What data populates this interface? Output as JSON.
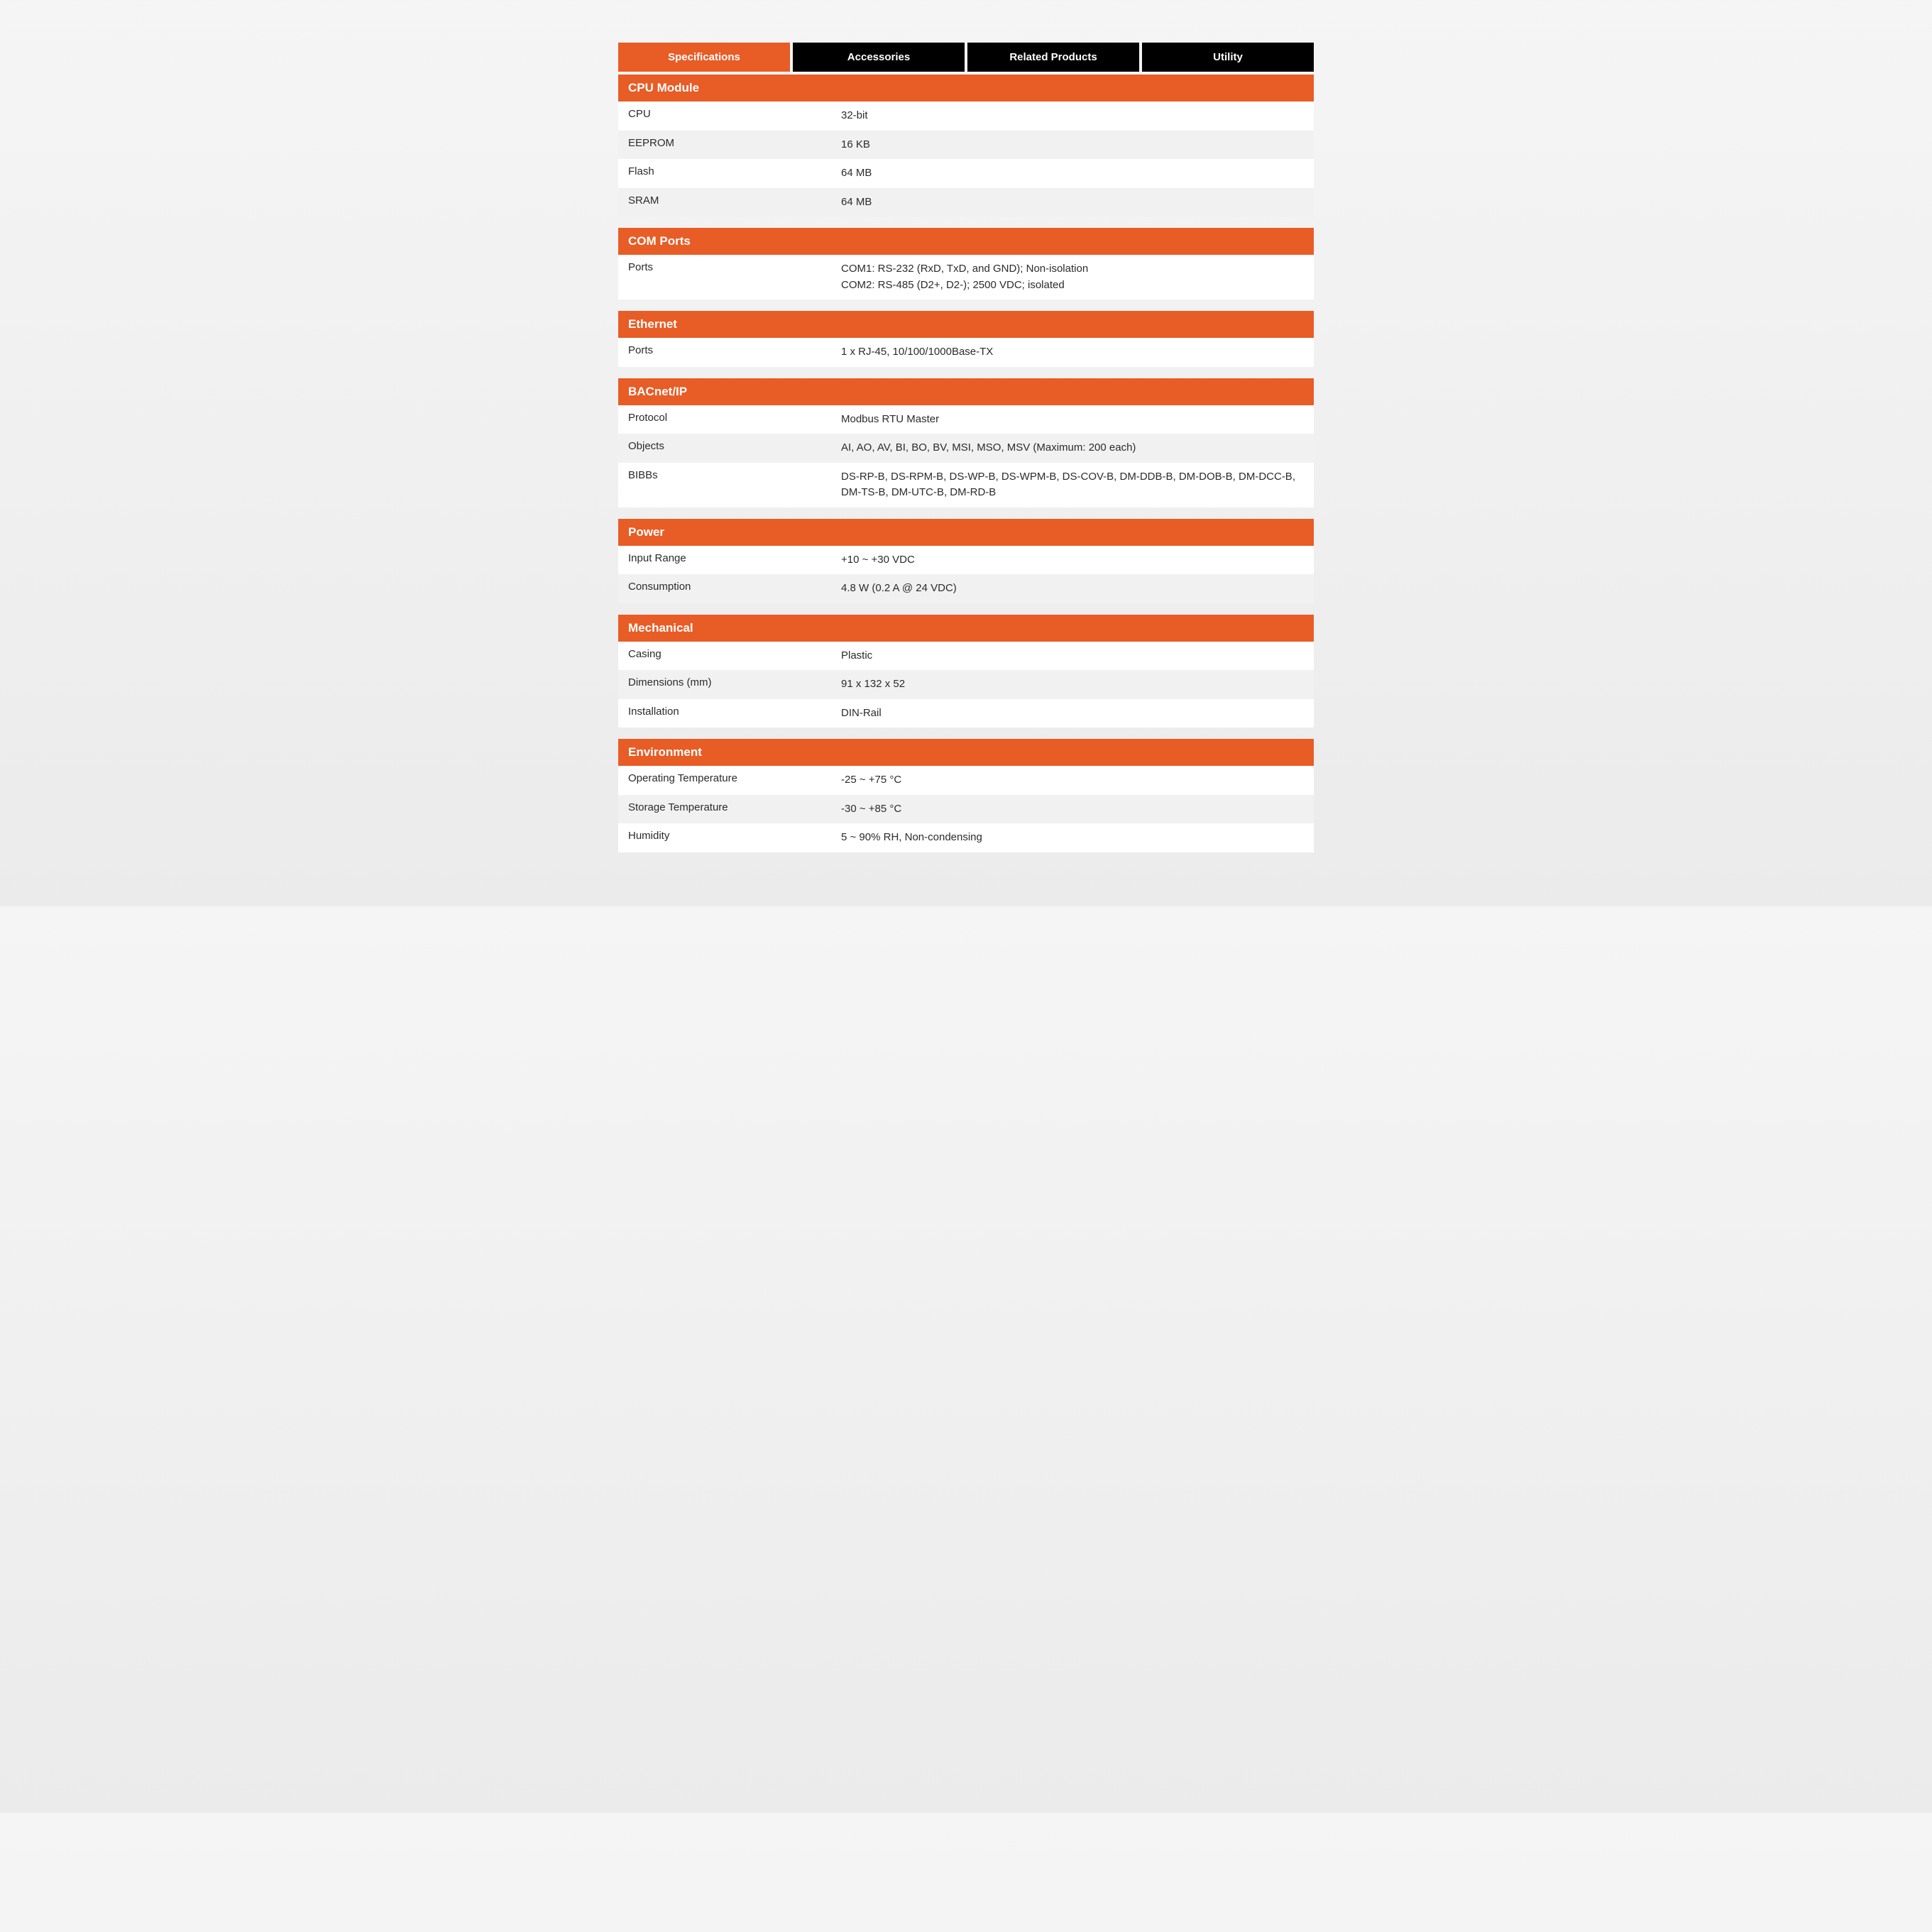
{
  "colors": {
    "accent": "#e85c26",
    "tab_inactive": "#000000",
    "row_bg": "#ffffff",
    "row_alt_bg": "#f1f1f1",
    "text": "#2b2b2b",
    "tab_text": "#ffffff"
  },
  "tabs": [
    {
      "label": "Specifications",
      "active": true
    },
    {
      "label": "Accessories",
      "active": false
    },
    {
      "label": "Related Products",
      "active": false
    },
    {
      "label": "Utility",
      "active": false
    }
  ],
  "sections": [
    {
      "title": "CPU Module",
      "rows": [
        {
          "label": "CPU",
          "value": "32-bit"
        },
        {
          "label": "EEPROM",
          "value": "16 KB"
        },
        {
          "label": "Flash",
          "value": "64 MB"
        },
        {
          "label": "SRAM",
          "value": "64 MB"
        }
      ]
    },
    {
      "title": "COM Ports",
      "rows": [
        {
          "label": "Ports",
          "value": "COM1: RS-232 (RxD, TxD, and GND); Non-isolation\nCOM2: RS-485 (D2+, D2-); 2500 VDC; isolated"
        }
      ]
    },
    {
      "title": "Ethernet",
      "rows": [
        {
          "label": "Ports",
          "value": "1 x RJ-45, 10/100/1000Base-TX"
        }
      ]
    },
    {
      "title": "BACnet/IP",
      "rows": [
        {
          "label": "Protocol",
          "value": "Modbus RTU Master"
        },
        {
          "label": "Objects",
          "value": "AI, AO, AV, BI, BO, BV, MSI, MSO, MSV (Maximum: 200 each)"
        },
        {
          "label": "BIBBs",
          "value": "DS-RP-B, DS-RPM-B, DS-WP-B, DS-WPM-B, DS-COV-B, DM-DDB-B, DM-DOB-B, DM-DCC-B, DM-TS-B, DM-UTC-B, DM-RD-B"
        }
      ]
    },
    {
      "title": "Power",
      "rows": [
        {
          "label": "Input Range",
          "value": "+10 ~ +30 VDC"
        },
        {
          "label": "Consumption",
          "value": "4.8 W (0.2 A @ 24 VDC)"
        }
      ]
    },
    {
      "title": "Mechanical",
      "rows": [
        {
          "label": "Casing",
          "value": "Plastic"
        },
        {
          "label": "Dimensions (mm)",
          "value": "91 x 132 x 52"
        },
        {
          "label": "Installation",
          "value": "DIN-Rail"
        }
      ]
    },
    {
      "title": "Environment",
      "rows": [
        {
          "label": "Operating Temperature",
          "value": "-25 ~ +75 °C"
        },
        {
          "label": "Storage Temperature",
          "value": "-30 ~ +85 °C"
        },
        {
          "label": "Humidity",
          "value": "5 ~ 90% RH, Non-condensing"
        }
      ]
    }
  ]
}
